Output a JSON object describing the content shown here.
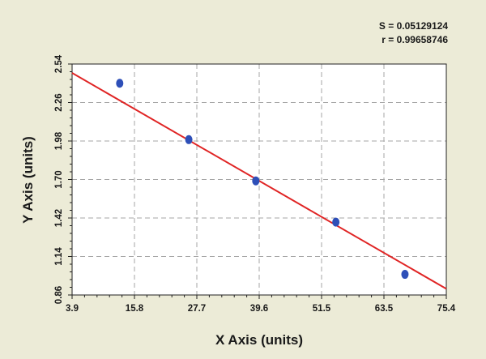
{
  "chart_data": {
    "type": "scatter",
    "xlabel": "X Axis (units)",
    "ylabel": "Y Axis (units)",
    "xlim": [
      3.9,
      75.4
    ],
    "ylim": [
      0.86,
      2.54
    ],
    "x_ticks": [
      "3.9",
      "15.8",
      "27.7",
      "39.6",
      "51.5",
      "63.5",
      "75.4"
    ],
    "y_ticks": [
      "0.86",
      "1.14",
      "1.42",
      "1.70",
      "1.98",
      "2.26",
      "2.54"
    ],
    "grid": true,
    "annotations": {
      "s": "S = 0.05129124",
      "r": "r = 0.99658746"
    },
    "series": [
      {
        "points": [
          {
            "x": 13.0,
            "y": 2.4
          },
          {
            "x": 26.2,
            "y": 1.99
          },
          {
            "x": 39.0,
            "y": 1.69
          },
          {
            "x": 54.3,
            "y": 1.39
          },
          {
            "x": 67.5,
            "y": 1.01
          }
        ]
      }
    ],
    "fit_line": {
      "x": [
        3.9,
        75.4
      ],
      "y": [
        2.475,
        0.905
      ]
    },
    "colors": {
      "points": "#2e4fb8",
      "fit_line": "#e02424",
      "grid": "#a6a6a6",
      "plot_bg": "#ffffff",
      "page_bg": "#ecebd7"
    }
  }
}
